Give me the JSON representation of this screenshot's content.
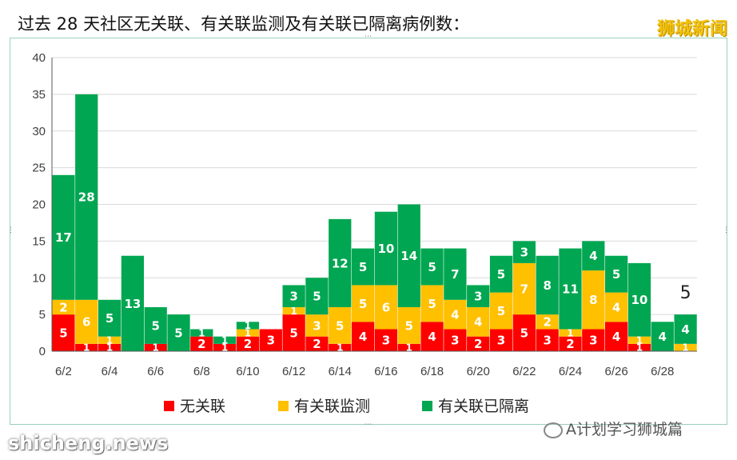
{
  "header": {
    "title": "过去 28 天社区无关联、有关联监测及有关联已隔离病例数：",
    "brand": "狮城新闻"
  },
  "watermark": {
    "text": "A计划学习狮城篇"
  },
  "site_mark": {
    "text": "shicheng.news"
  },
  "colors": {
    "unlinked": "#ff0000",
    "monitored": "#ffc000",
    "quarantined": "#00a651",
    "grid": "#d9d9d9",
    "axis": "#595959"
  },
  "chart_data": {
    "type": "bar",
    "stacked": true,
    "title": "过去 28 天社区无关联、有关联监测及有关联已隔离病例数：",
    "xlabel": "",
    "ylabel": "",
    "ylim": [
      0,
      40
    ],
    "yticks": [
      0,
      5,
      10,
      15,
      20,
      25,
      30,
      35,
      40
    ],
    "grid": true,
    "legend_position": "bottom",
    "categories": [
      "6/2",
      "6/3",
      "6/4",
      "6/5",
      "6/6",
      "6/7",
      "6/8",
      "6/9",
      "6/10",
      "6/11",
      "6/12",
      "6/13",
      "6/14",
      "6/15",
      "6/16",
      "6/17",
      "6/18",
      "6/19",
      "6/20",
      "6/21",
      "6/22",
      "6/23",
      "6/24",
      "6/25",
      "6/26",
      "6/27",
      "6/28",
      "6/29"
    ],
    "tick_labels": [
      "6/2",
      "",
      "6/4",
      "",
      "6/6",
      "",
      "6/8",
      "",
      "6/10",
      "",
      "6/12",
      "",
      "6/14",
      "",
      "6/16",
      "",
      "6/18",
      "",
      "6/20",
      "",
      "6/22",
      "",
      "6/24",
      "",
      "6/26",
      "",
      "6/28",
      ""
    ],
    "series": [
      {
        "name": "无关联",
        "values": [
          5,
          1,
          1,
          0,
          1,
          0,
          2,
          1,
          2,
          3,
          5,
          2,
          1,
          4,
          3,
          1,
          4,
          3,
          2,
          3,
          5,
          3,
          2,
          3,
          4,
          1,
          0,
          0
        ]
      },
      {
        "name": "有关联监测",
        "values": [
          2,
          6,
          1,
          0,
          0,
          0,
          0,
          0,
          1,
          0,
          1,
          3,
          5,
          5,
          6,
          5,
          5,
          4,
          4,
          5,
          7,
          2,
          1,
          8,
          4,
          1,
          0,
          1
        ]
      },
      {
        "name": "有关联已隔离",
        "values": [
          17,
          28,
          5,
          13,
          5,
          5,
          1,
          1,
          1,
          0,
          3,
          5,
          12,
          5,
          10,
          14,
          5,
          7,
          3,
          5,
          3,
          8,
          11,
          4,
          5,
          10,
          4,
          4
        ]
      }
    ],
    "value_labels": [
      [
        "5",
        "1",
        "1",
        "",
        "1",
        "",
        "2",
        "1",
        "2",
        "3",
        "5",
        "2",
        "1",
        "4",
        "3",
        "1",
        "4",
        "3",
        "2",
        "3",
        "5",
        "3",
        "2",
        "3",
        "4",
        "1",
        "",
        ""
      ],
      [
        "2",
        "6",
        "1",
        "",
        "",
        "",
        "",
        "",
        "1",
        "",
        "1",
        "3",
        "5",
        "5",
        "6",
        "5",
        "5",
        "4",
        "4",
        "5",
        "7",
        "2",
        "1",
        "8",
        "4",
        "1",
        "",
        "1"
      ],
      [
        "17",
        "28",
        "5",
        "13",
        "5",
        "5",
        "1",
        "1",
        "1",
        "",
        "3",
        "5",
        "12",
        "5",
        "10",
        "14",
        "5",
        "7",
        "3",
        "5",
        "3",
        "8",
        "11",
        "4",
        "5",
        "10",
        "4",
        "4"
      ]
    ],
    "annotation": "5"
  }
}
